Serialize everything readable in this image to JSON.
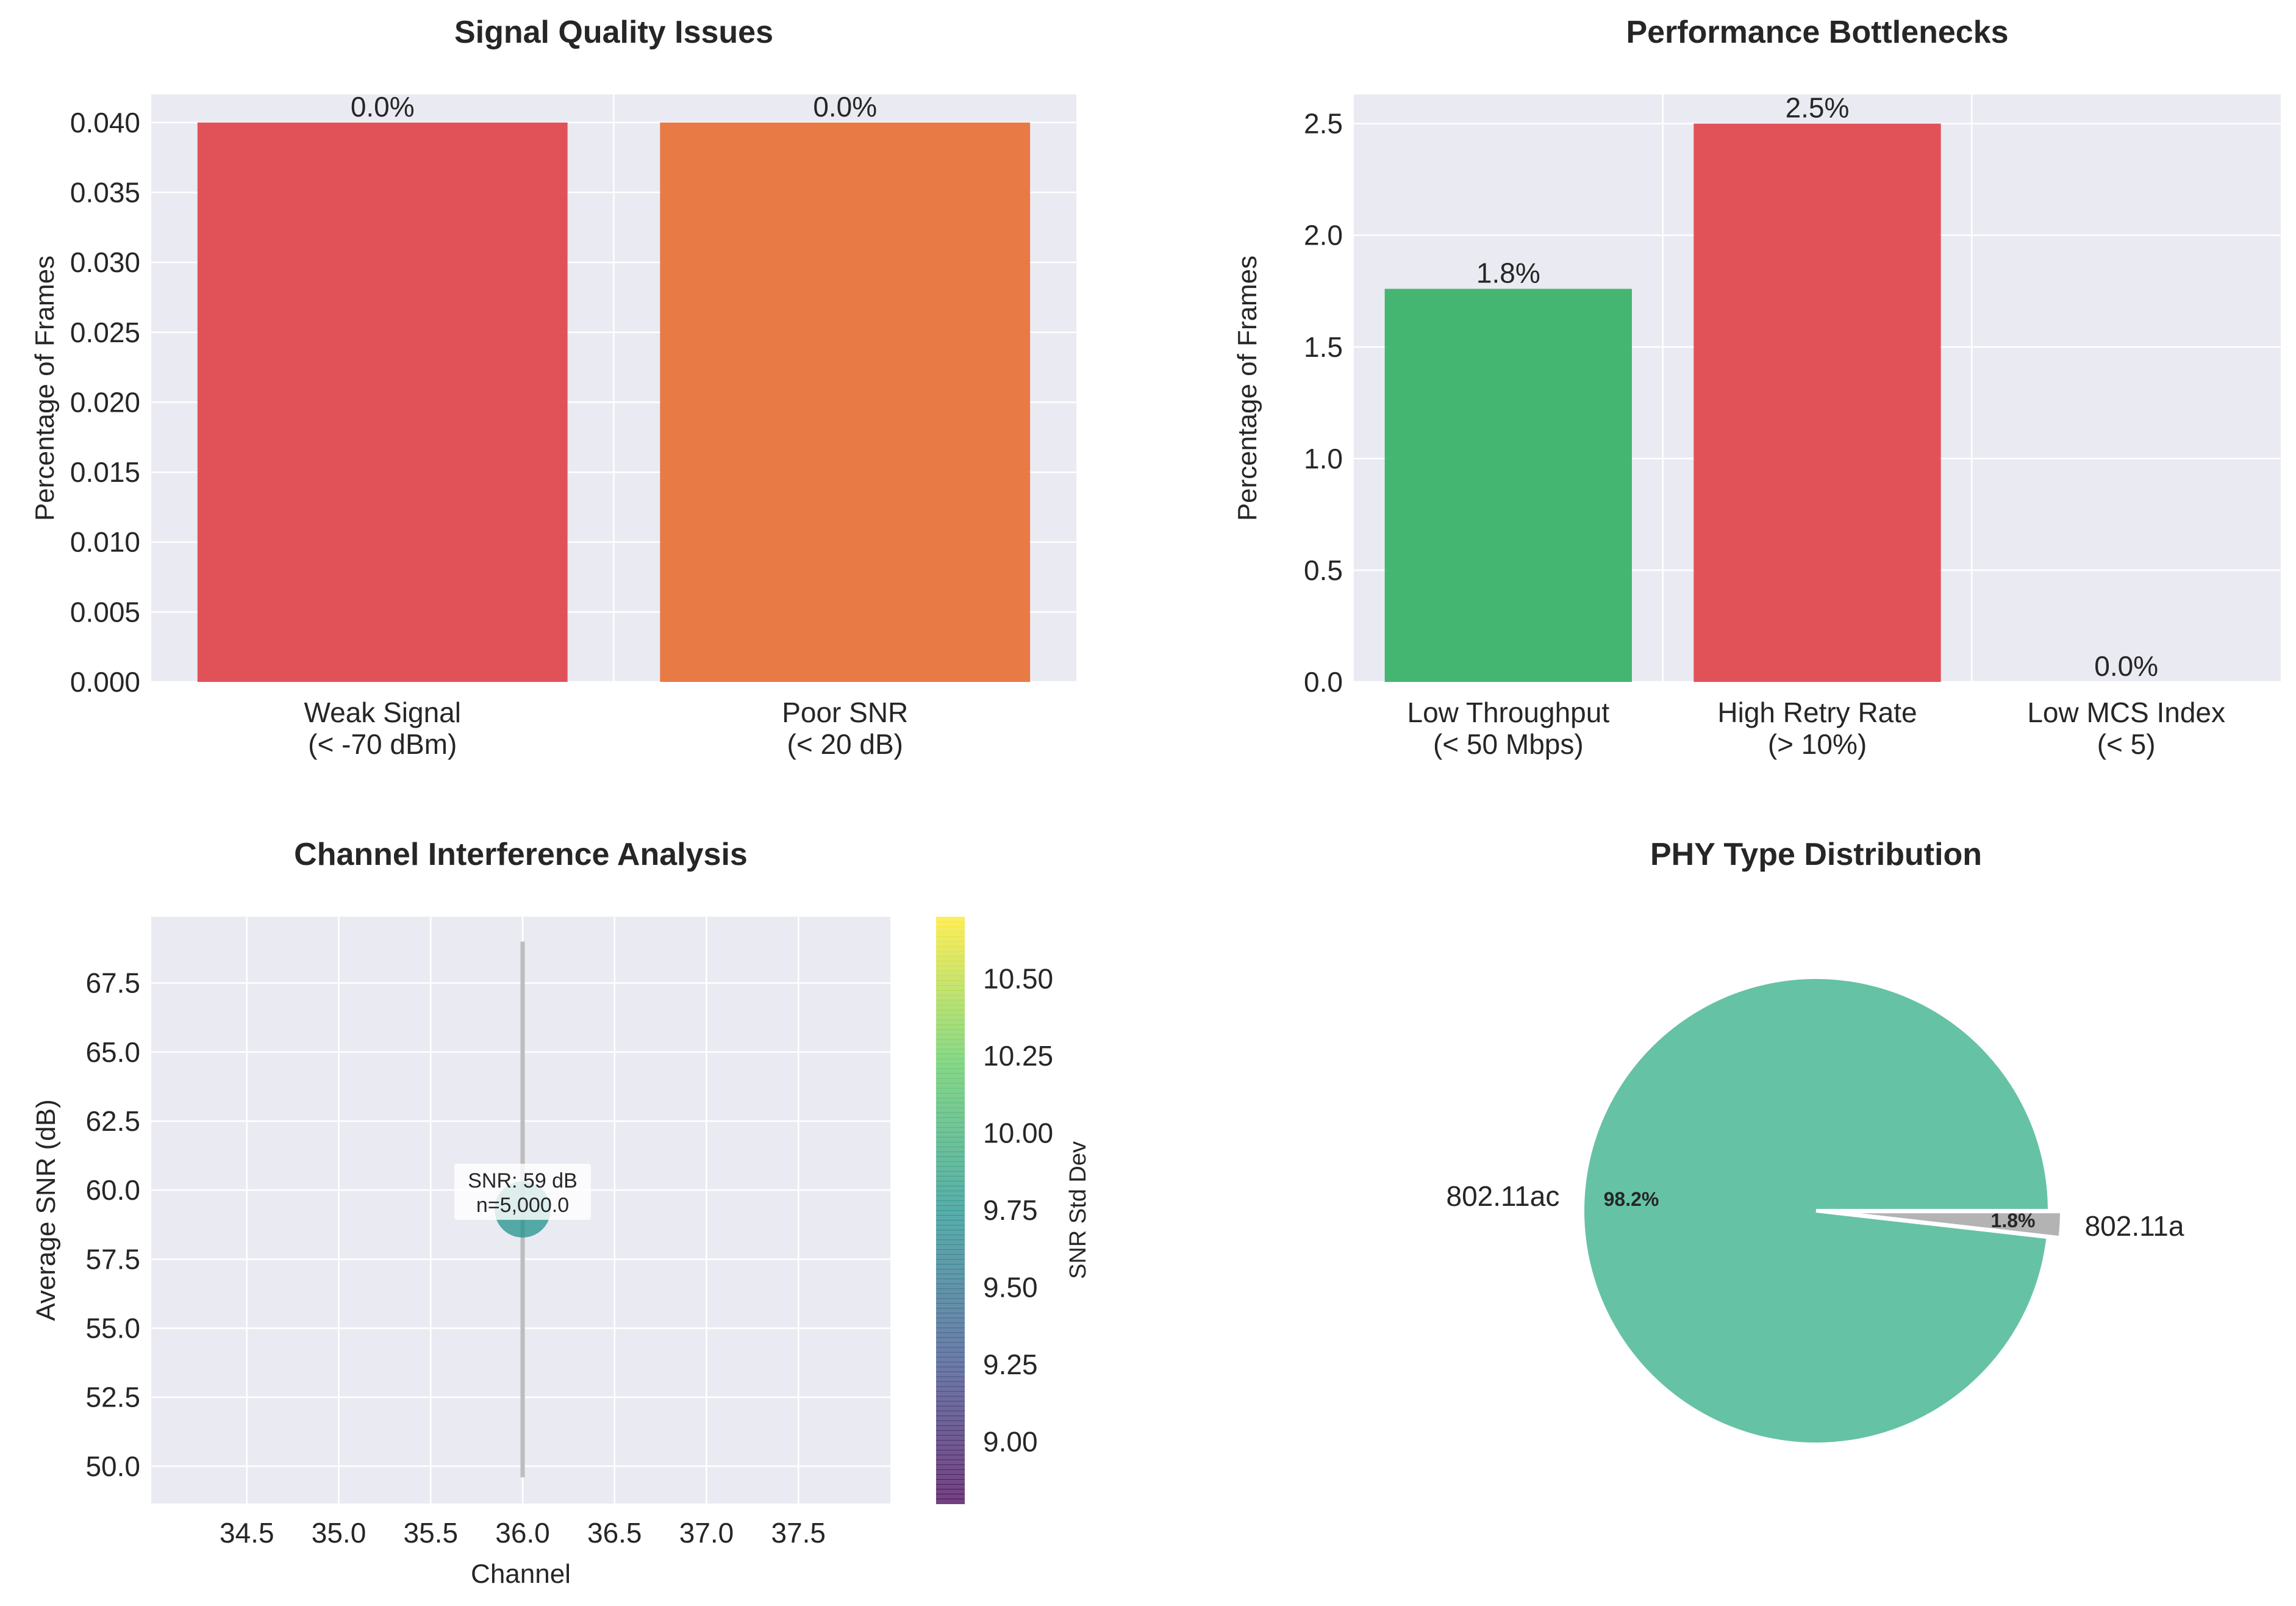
{
  "chart_data": [
    {
      "type": "bar",
      "title": "Signal Quality Issues",
      "ylabel": "Percentage of Frames",
      "xlabel": "",
      "categories": [
        "Weak Signal\n(< -70 dBm)",
        "Poor SNR\n(< 20 dB)"
      ],
      "values": [
        0.04,
        0.04
      ],
      "data_labels": [
        "0.0%",
        "0.0%"
      ],
      "colors": [
        "#e04a4f",
        "#e8743b"
      ],
      "ylim": [
        0,
        0.042
      ],
      "yticks": [
        "0.000",
        "0.005",
        "0.010",
        "0.015",
        "0.020",
        "0.025",
        "0.030",
        "0.035",
        "0.040"
      ],
      "grid": true
    },
    {
      "type": "bar",
      "title": "Performance Bottlenecks",
      "ylabel": "Percentage of Frames",
      "xlabel": "",
      "categories": [
        "Low Throughput\n(< 50 Mbps)",
        "High Retry Rate\n(> 10%)",
        "Low MCS Index\n(< 5)"
      ],
      "values": [
        1.76,
        2.5,
        0.0
      ],
      "data_labels": [
        "1.8%",
        "2.5%",
        "0.0%"
      ],
      "colors": [
        "#3cb26a",
        "#e04a4f",
        "#e8743b"
      ],
      "ylim": [
        0,
        2.63
      ],
      "yticks": [
        "0.0",
        "0.5",
        "1.0",
        "1.5",
        "2.0",
        "2.5"
      ],
      "grid": true
    },
    {
      "type": "scatter",
      "title": "Channel Interference Analysis",
      "xlabel": "Channel",
      "ylabel": "Average SNR (dB)",
      "points": [
        {
          "x": 36.0,
          "y": 59.3,
          "err_low": 49.6,
          "err_high": 69.0,
          "color_value": 9.75
        }
      ],
      "annotation": "SNR: 59 dB\nn=5,000.0",
      "xlim": [
        33.98,
        38.0
      ],
      "ylim": [
        48.65,
        69.9
      ],
      "xticks": [
        "34.5",
        "35.0",
        "35.5",
        "36.0",
        "36.5",
        "37.0",
        "37.5"
      ],
      "yticks": [
        "50.0",
        "52.5",
        "55.0",
        "57.5",
        "60.0",
        "62.5",
        "65.0",
        "67.5"
      ],
      "colorbar": {
        "label": "SNR Std Dev",
        "range": [
          8.8,
          10.7
        ],
        "ticks": [
          "9.00",
          "9.25",
          "9.50",
          "9.75",
          "10.00",
          "10.25",
          "10.50"
        ]
      },
      "grid": true
    },
    {
      "type": "pie",
      "title": "PHY Type Distribution",
      "labels": [
        "802.11ac",
        "802.11a"
      ],
      "values": [
        98.2,
        1.8
      ],
      "pct_labels": [
        "98.2%",
        "1.8%"
      ],
      "colors": [
        "#66c2a5",
        "#b3b3b3"
      ]
    }
  ]
}
